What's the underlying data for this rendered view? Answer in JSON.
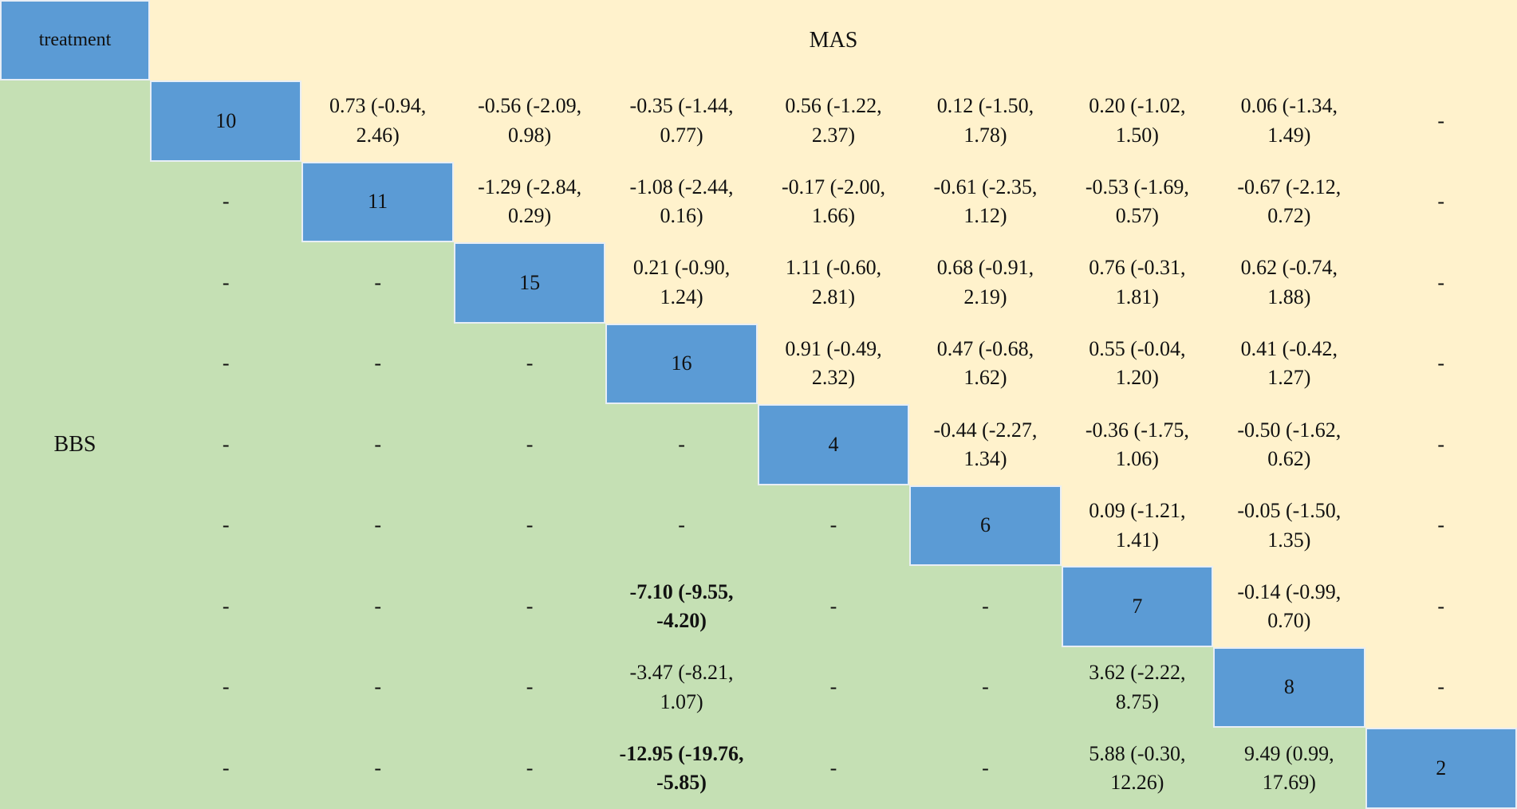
{
  "header": {
    "corner": "treatment",
    "column_group": "MAS",
    "row_group": "BBS"
  },
  "table": {
    "rows": [
      [
        "10",
        "0.73 (-0.94, 2.46)",
        "-0.56 (-2.09, 0.98)",
        "-0.35 (-1.44, 0.77)",
        "0.56 (-1.22, 2.37)",
        "0.12 (-1.50, 1.78)",
        "0.20 (-1.02, 1.50)",
        "0.06 (-1.34, 1.49)",
        "-"
      ],
      [
        "-",
        "11",
        "-1.29 (-2.84, 0.29)",
        "-1.08 (-2.44, 0.16)",
        "-0.17 (-2.00, 1.66)",
        "-0.61 (-2.35, 1.12)",
        "-0.53 (-1.69, 0.57)",
        "-0.67 (-2.12, 0.72)",
        "-"
      ],
      [
        "-",
        "-",
        "15",
        "0.21 (-0.90, 1.24)",
        "1.11 (-0.60, 2.81)",
        "0.68 (-0.91, 2.19)",
        "0.76 (-0.31, 1.81)",
        "0.62 (-0.74, 1.88)",
        "-"
      ],
      [
        "-",
        "-",
        "-",
        "16",
        "0.91 (-0.49, 2.32)",
        "0.47 (-0.68, 1.62)",
        "0.55 (-0.04, 1.20)",
        "0.41 (-0.42, 1.27)",
        "-"
      ],
      [
        "-",
        "-",
        "-",
        "-",
        "4",
        "-0.44 (-2.27, 1.34)",
        "-0.36 (-1.75, 1.06)",
        "-0.50 (-1.62, 0.62)",
        "-"
      ],
      [
        "-",
        "-",
        "-",
        "-",
        "-",
        "6",
        "0.09 (-1.21, 1.41)",
        "-0.05 (-1.50, 1.35)",
        "-"
      ],
      [
        "-",
        "-",
        "-",
        {
          "text": "-7.10 (-9.55, -4.20)",
          "bold": true
        },
        "-",
        "-",
        "7",
        "-0.14 (-0.99, 0.70)",
        "-"
      ],
      [
        "-",
        "-",
        "-",
        "-3.47 (-8.21, 1.07)",
        "-",
        "-",
        "3.62 (-2.22, 8.75)",
        "8",
        "-"
      ],
      [
        "-",
        "-",
        "-",
        {
          "text": "-12.95 (-19.76, -5.85)",
          "bold": true
        },
        "-",
        "-",
        "5.88 (-0.30, 12.26)",
        "9.49 (0.99, 17.69)",
        "2"
      ]
    ]
  }
}
